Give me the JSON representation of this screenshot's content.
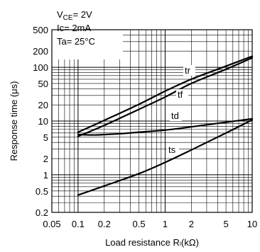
{
  "chart_data": {
    "type": "line",
    "title": "",
    "xlabel": "Load resistance Rₗ(kΩ)",
    "ylabel": "Response time (μs)",
    "x_scale": "log",
    "y_scale": "log",
    "xlim": [
      0.05,
      10
    ],
    "ylim": [
      0.2,
      500
    ],
    "x_ticks": [
      {
        "value": 0.05,
        "label": "0.05"
      },
      {
        "value": 0.1,
        "label": "0.1"
      },
      {
        "value": 0.2,
        "label": "0.2"
      },
      {
        "value": 0.5,
        "label": "0.5"
      },
      {
        "value": 1,
        "label": "1"
      },
      {
        "value": 2,
        "label": "2"
      },
      {
        "value": 5,
        "label": "5"
      },
      {
        "value": 10,
        "label": "10"
      }
    ],
    "y_ticks": [
      {
        "value": 0.2,
        "label": "0.2"
      },
      {
        "value": 0.5,
        "label": "0.5"
      },
      {
        "value": 1,
        "label": "1"
      },
      {
        "value": 2,
        "label": "2"
      },
      {
        "value": 5,
        "label": "5"
      },
      {
        "value": 10,
        "label": "10"
      },
      {
        "value": 20,
        "label": "20"
      },
      {
        "value": 50,
        "label": "50"
      },
      {
        "value": 100,
        "label": "100"
      },
      {
        "value": 200,
        "label": "200"
      },
      {
        "value": 500,
        "label": "500"
      }
    ],
    "grid": true,
    "conditions": {
      "vce_prefix": "V",
      "vce_sub": "CE",
      "vce_value": "= 2V",
      "ic": "Ic= 2mA",
      "ta": "Ta= 25°C"
    },
    "series": [
      {
        "name": "tr",
        "x": [
          0.1,
          0.2,
          0.5,
          1,
          2,
          5,
          10
        ],
        "y": [
          6.2,
          10.3,
          20.5,
          36,
          60,
          105,
          160
        ]
      },
      {
        "name": "tf",
        "x": [
          0.1,
          0.2,
          0.5,
          1,
          2,
          5,
          10
        ],
        "y": [
          5.2,
          8.3,
          16.5,
          28,
          50,
          92,
          150
        ]
      },
      {
        "name": "td",
        "x": [
          0.1,
          0.15,
          0.2,
          0.3,
          0.5,
          1,
          2,
          5,
          10
        ],
        "y": [
          5.6,
          5.5,
          5.6,
          5.8,
          6.2,
          6.8,
          7.8,
          9.5,
          11
        ]
      },
      {
        "name": "ts",
        "x": [
          0.1,
          0.2,
          0.5,
          1,
          2,
          5,
          10
        ],
        "y": [
          0.42,
          0.62,
          1.05,
          1.7,
          2.9,
          6.0,
          10.5
        ]
      }
    ]
  }
}
